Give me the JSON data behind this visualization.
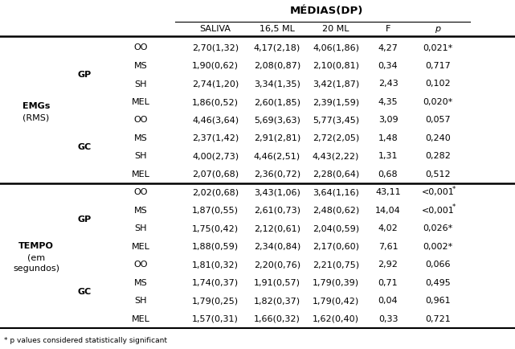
{
  "title": "MÉDIAS(DP)",
  "emg_data": [
    [
      "OO",
      "2,70(1,32)",
      "4,17(2,18)",
      "4,06(1,86)",
      "4,27",
      "0,021",
      true
    ],
    [
      "MS",
      "1,90(0,62)",
      "2,08(0,87)",
      "2,10(0,81)",
      "0,34",
      "0,717",
      false
    ],
    [
      "SH",
      "2,74(1,20)",
      "3,34(1,35)",
      "3,42(1,87)",
      "2,43",
      "0,102",
      false
    ],
    [
      "MEL",
      "1,86(0,52)",
      "2,60(1,85)",
      "2,39(1,59)",
      "4,35",
      "0,020",
      true
    ],
    [
      "OO",
      "4,46(3,64)",
      "5,69(3,63)",
      "5,77(3,45)",
      "3,09",
      "0,057",
      false
    ],
    [
      "MS",
      "2,37(1,42)",
      "2,91(2,81)",
      "2,72(2,05)",
      "1,48",
      "0,240",
      false
    ],
    [
      "SH",
      "4,00(2,73)",
      "4,46(2,51)",
      "4,43(2,22)",
      "1,31",
      "0,282",
      false
    ],
    [
      "MEL",
      "2,07(0,68)",
      "2,36(0,72)",
      "2,28(0,64)",
      "0,68",
      "0,512",
      false
    ]
  ],
  "tempo_data": [
    [
      "OO",
      "2,02(0,68)",
      "3,43(1,06)",
      "3,64(1,16)",
      "43,11",
      "<0,001",
      true
    ],
    [
      "MS",
      "1,87(0,55)",
      "2,61(0,73)",
      "2,48(0,62)",
      "14,04",
      "<0,001",
      true
    ],
    [
      "SH",
      "1,75(0,42)",
      "2,12(0,61)",
      "2,04(0,59)",
      "4,02",
      "0,026",
      true
    ],
    [
      "MEL",
      "1,88(0,59)",
      "2,34(0,84)",
      "2,17(0,60)",
      "7,61",
      "0,002",
      true
    ],
    [
      "OO",
      "1,81(0,32)",
      "2,20(0,76)",
      "2,21(0,75)",
      "2,92",
      "0,066",
      false
    ],
    [
      "MS",
      "1,74(0,37)",
      "1,91(0,57)",
      "1,79(0,39)",
      "0,71",
      "0,495",
      false
    ],
    [
      "SH",
      "1,79(0,25)",
      "1,82(0,37)",
      "1,79(0,42)",
      "0,04",
      "0,961",
      false
    ],
    [
      "MEL",
      "1,57(0,31)",
      "1,66(0,32)",
      "1,62(0,40)",
      "0,33",
      "0,721",
      false
    ]
  ],
  "footnote": "* p values considered statistically significant",
  "bg_color": "#ffffff",
  "text_color": "#000000",
  "font_size": 8.0,
  "title_font_size": 9.5
}
